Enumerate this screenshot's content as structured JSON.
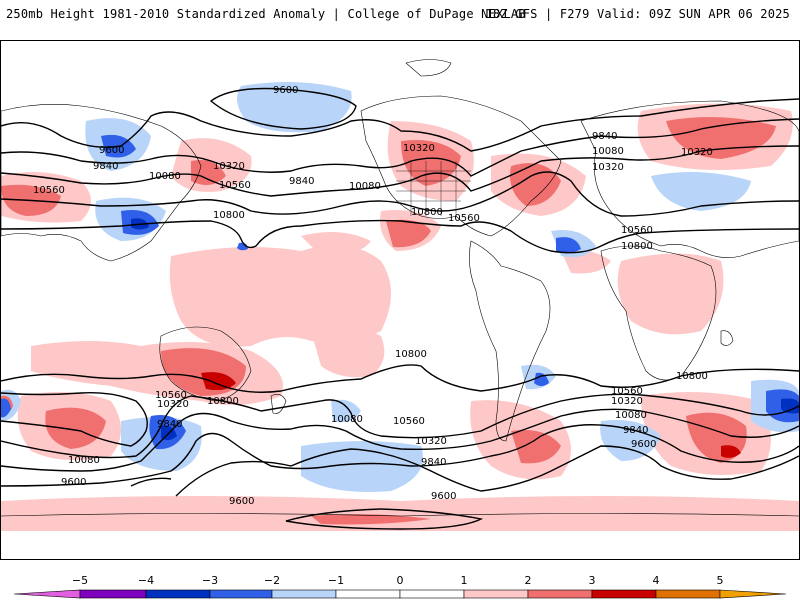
{
  "header": {
    "title": "250mb Height 1981-2010 Standardized Anomaly | College of DuPage NEXLAB",
    "run_info": "18Z GFS | F279 Valid: 09Z SUN APR 06 2025"
  },
  "colors": {
    "neg5": "#e060e0",
    "neg4": "#8000c0",
    "neg3": "#0030c0",
    "neg2": "#3060e8",
    "neg1": "#b8d4f8",
    "zero": "#ffffff",
    "pos1": "#ffc8c8",
    "pos2": "#f07070",
    "pos3": "#c80000",
    "pos4": "#e07000",
    "pos5": "#f0a000"
  },
  "colorbar": {
    "ticks": [
      "−5",
      "−4",
      "−3",
      "−2",
      "−1",
      "0",
      "1",
      "2",
      "3",
      "4",
      "5"
    ]
  },
  "contour_labels": [
    "9600",
    "9600",
    "9840",
    "10080",
    "10560",
    "10320",
    "10560",
    "9840",
    "10080",
    "10800",
    "10320",
    "10800",
    "10560",
    "9840",
    "10080",
    "10320",
    "10320",
    "10560",
    "10800",
    "10800",
    "10560",
    "10320",
    "10800",
    "10080",
    "10560",
    "9840",
    "10080",
    "9600",
    "10320",
    "9840",
    "9600",
    "10560",
    "10320",
    "10080",
    "9840",
    "9600",
    "10800",
    "9600"
  ]
}
